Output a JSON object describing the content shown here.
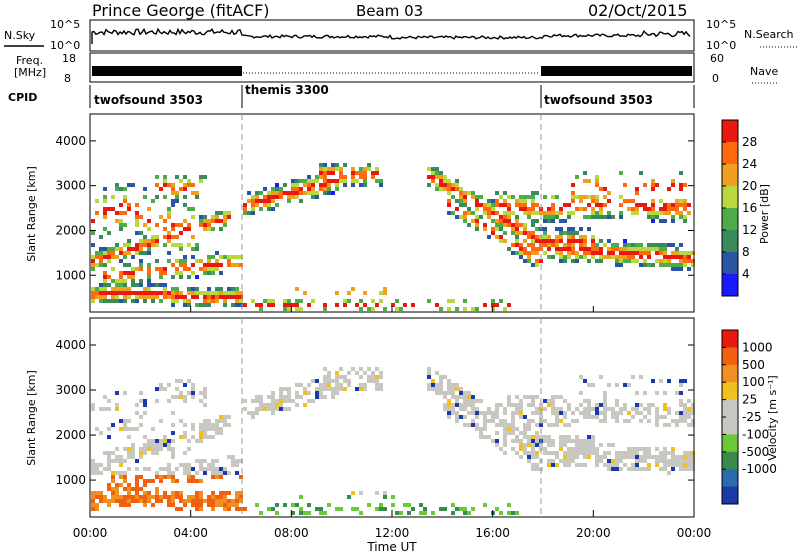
{
  "header": {
    "station": "Prince George (fitACF)",
    "beam": "Beam 03",
    "date": "02/Oct/2015"
  },
  "noise_panel": {
    "left_label": "N.Sky",
    "right_label": "N.Search",
    "left_ticks": [
      "10^5",
      "10^0"
    ],
    "right_ticks": [
      "10^5",
      "10^0"
    ]
  },
  "freq_panel": {
    "left_label_line1": "Freq.",
    "left_label_line2": "[MHz]",
    "left_ticks": [
      "18",
      "8"
    ],
    "right_label": "Nave",
    "right_ticks": [
      "60",
      "0"
    ]
  },
  "cpid": {
    "label": "CPID",
    "segments": [
      {
        "name": "twofsound 3503",
        "start_hour": 0,
        "end_hour": 6
      },
      {
        "name": "themis 3300",
        "start_hour": 6,
        "end_hour": 18
      },
      {
        "name": "twofsound 3503",
        "start_hour": 18,
        "end_hour": 24
      }
    ]
  },
  "x_axis": {
    "label": "Time UT",
    "ticks": [
      "00:00",
      "04:00",
      "08:00",
      "12:00",
      "16:00",
      "20:00",
      "00:00"
    ],
    "range_hours": [
      0,
      24
    ]
  },
  "chart_data": [
    {
      "type": "heatmap",
      "name": "power",
      "ylabel": "Slant Range [km]",
      "yticks": [
        "1000",
        "2000",
        "3000",
        "4000"
      ],
      "ylim": [
        180,
        4600
      ],
      "colorbar_label": "Power [dB]",
      "colorbar_ticks": [
        "4",
        "8",
        "12",
        "16",
        "20",
        "24",
        "28"
      ],
      "colors": [
        "#1a1aff",
        "#2a55a0",
        "#3a8a5a",
        "#4faa4a",
        "#b8d840",
        "#f0a020",
        "#ff6a10",
        "#e81a10"
      ]
    },
    {
      "type": "heatmap",
      "name": "velocity",
      "ylabel": "Slant Range [km]",
      "yticks": [
        "1000",
        "2000",
        "3000",
        "4000"
      ],
      "ylim": [
        180,
        4600
      ],
      "colorbar_label": "Velocity [m s⁻¹]",
      "colorbar_ticks": [
        "1000",
        "500",
        "100",
        "25",
        "-25",
        "-100",
        "-500",
        "-1000"
      ],
      "colors": [
        "#1a3aa8",
        "#2a6ab0",
        "#3a8a4a",
        "#6ac83a",
        "#c8c8c0",
        "#c8c8c0",
        "#f0c020",
        "#f09020",
        "#f06010",
        "#e81a10"
      ]
    }
  ]
}
